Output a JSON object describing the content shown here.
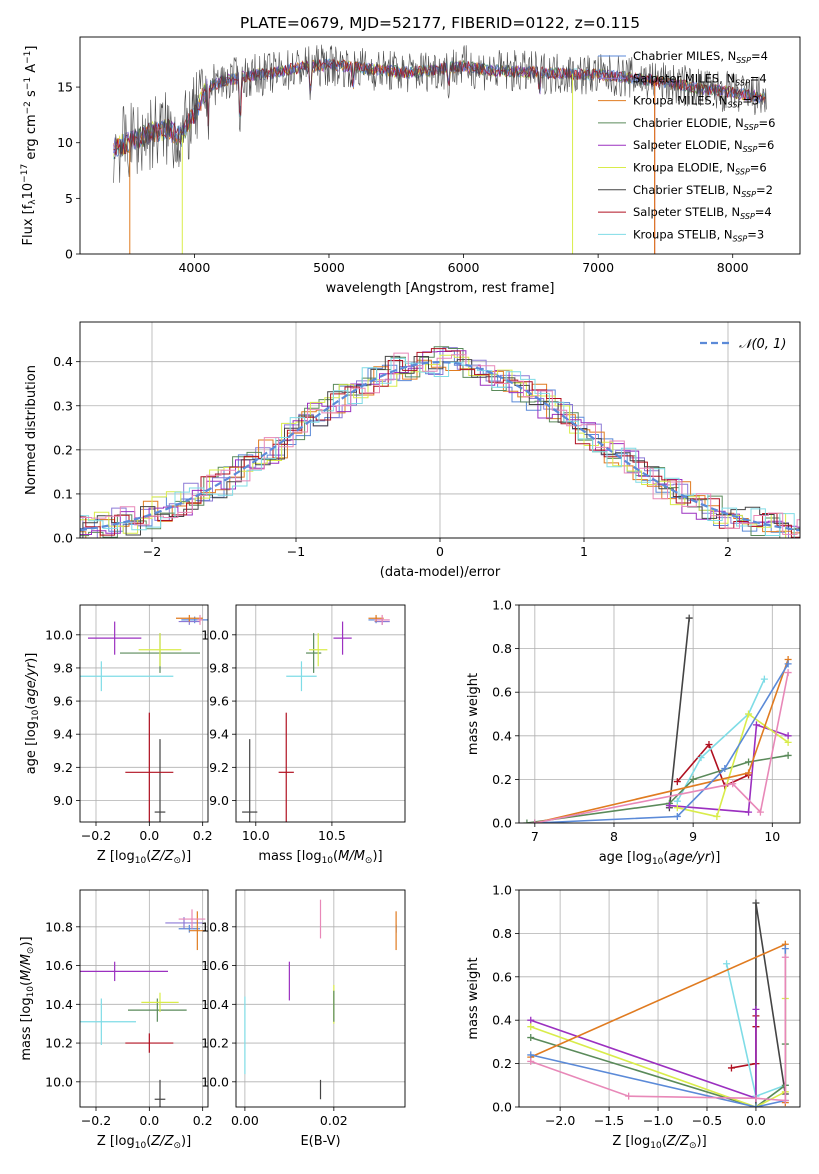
{
  "figure_title": "PLATE=0679, MJD=52177, FIBERID=0122, z=0.115",
  "colors": {
    "chabrier_miles": "#5b8ad8",
    "salpeter_miles": "#8c7ad6",
    "kroupa_miles": "#e07b20",
    "chabrier_elodie": "#5a8a5a",
    "salpeter_elodie": "#9b30c0",
    "kroupa_elodie": "#d9ec4a",
    "chabrier_stelib": "#444444",
    "salpeter_stelib": "#b01020",
    "kroupa_stelib": "#7fdce6",
    "pink": "#e888b8",
    "normal": "#5b8ad8"
  },
  "chart_data": [
    {
      "type": "line",
      "id": "spectrum",
      "xlabel": "wavelength [Angstrom, rest frame]",
      "ylabel": "Flux [f_λ10^-17 erg cm^-2 s^-1 A^-1]",
      "xlim": [
        3150,
        8500
      ],
      "ylim": [
        0,
        19.5
      ],
      "xticks": [
        4000,
        5000,
        6000,
        7000,
        8000
      ],
      "yticks": [
        0,
        5,
        10,
        15
      ],
      "grid": false,
      "legend_position": "upper right",
      "legend": [
        {
          "base": "Chabrier MILES, N",
          "sub": "SSP",
          "tail": "=4",
          "key": "chabrier_miles"
        },
        {
          "base": "Salpeter MILES, N",
          "sub": "SSP",
          "tail": "=4",
          "key": "salpeter_miles"
        },
        {
          "base": "Kroupa MILES, N",
          "sub": "SSP",
          "tail": "=3",
          "key": "kroupa_miles"
        },
        {
          "base": "Chabrier ELODIE, N",
          "sub": "SSP",
          "tail": "=6",
          "key": "chabrier_elodie"
        },
        {
          "base": "Salpeter ELODIE, N",
          "sub": "SSP",
          "tail": "=6",
          "key": "salpeter_elodie"
        },
        {
          "base": "Kroupa ELODIE, N",
          "sub": "SSP",
          "tail": "=6",
          "key": "kroupa_elodie"
        },
        {
          "base": "Chabrier STELIB, N",
          "sub": "SSP",
          "tail": "=2",
          "key": "chabrier_stelib"
        },
        {
          "base": "Salpeter STELIB, N",
          "sub": "SSP",
          "tail": "=4",
          "key": "salpeter_stelib"
        },
        {
          "base": "Kroupa STELIB, N",
          "sub": "SSP",
          "tail": "=3",
          "key": "kroupa_stelib"
        }
      ],
      "continuum": [
        [
          3400,
          9.5
        ],
        [
          3500,
          10
        ],
        [
          3600,
          10.5
        ],
        [
          3700,
          11
        ],
        [
          3800,
          11.2
        ],
        [
          3900,
          10.5
        ],
        [
          4000,
          12.5
        ],
        [
          4100,
          15
        ],
        [
          4200,
          15.5
        ],
        [
          4400,
          16
        ],
        [
          4600,
          16.3
        ],
        [
          4800,
          16.8
        ],
        [
          5000,
          17
        ],
        [
          5200,
          16.8
        ],
        [
          5400,
          16.5
        ],
        [
          5600,
          16.3
        ],
        [
          5800,
          16.6
        ],
        [
          6000,
          16.9
        ],
        [
          6200,
          16.5
        ],
        [
          6400,
          16.4
        ],
        [
          6600,
          16.3
        ],
        [
          6800,
          16.2
        ],
        [
          7000,
          16.1
        ],
        [
          7200,
          15.9
        ],
        [
          7400,
          15.6
        ],
        [
          7600,
          15.2
        ],
        [
          7800,
          14.8
        ],
        [
          8000,
          14.5
        ],
        [
          8250,
          14.0
        ]
      ]
    },
    {
      "type": "bar",
      "id": "residual_histogram",
      "xlabel": "(data-model)/error",
      "ylabel": "Normed distribution",
      "xlim": [
        -2.5,
        2.5
      ],
      "ylim": [
        0,
        0.49
      ],
      "xticks": [
        -2,
        -1,
        0,
        1,
        2
      ],
      "yticks": [
        0.0,
        0.1,
        0.2,
        0.3,
        0.4
      ],
      "grid": true,
      "legend_position": "upper right",
      "legend_label": "𝒩(0, 1)",
      "normal_curve": {
        "mu": 0,
        "sigma": 1
      }
    },
    {
      "type": "scatter",
      "id": "age_vs_z",
      "xlabel": "Z [log10(Z/Z⊙)]",
      "ylabel": "age [log10(age/yr)]",
      "xlim": [
        -0.26,
        0.22
      ],
      "ylim": [
        8.87,
        10.18
      ],
      "xticks": [
        -0.2,
        0.0,
        0.2
      ],
      "yticks": [
        9.0,
        9.2,
        9.4,
        9.6,
        9.8,
        10.0
      ],
      "grid": true,
      "points": [
        {
          "key": "chabrier_miles",
          "x": 0.17,
          "y": 10.09,
          "xerr": 0.05,
          "yerr": 0.02
        },
        {
          "key": "salpeter_miles",
          "x": 0.15,
          "y": 10.08,
          "xerr": 0.04,
          "yerr": 0.02
        },
        {
          "key": "kroupa_miles",
          "x": 0.15,
          "y": 10.1,
          "xerr": 0.05,
          "yerr": 0.02
        },
        {
          "key": "chabrier_elodie",
          "x": 0.04,
          "y": 9.89,
          "xerr": 0.15,
          "yerr": 0.12
        },
        {
          "key": "salpeter_elodie",
          "x": -0.13,
          "y": 9.98,
          "xerr": 0.1,
          "yerr": 0.1
        },
        {
          "key": "kroupa_elodie",
          "x": 0.04,
          "y": 9.91,
          "xerr": 0.08,
          "yerr": 0.1
        },
        {
          "key": "chabrier_stelib",
          "x": 0.04,
          "y": 8.93,
          "xerr": 0.02,
          "yerr": 0.44
        },
        {
          "key": "salpeter_stelib",
          "x": 0.0,
          "y": 9.17,
          "xerr": 0.09,
          "yerr": 0.36
        },
        {
          "key": "kroupa_stelib",
          "x": -0.18,
          "y": 9.75,
          "xerr": 0.27,
          "yerr": 0.09
        },
        {
          "key": "pink",
          "x": 0.19,
          "y": 10.09,
          "xerr": 0.01,
          "yerr": 0.03
        }
      ]
    },
    {
      "type": "scatter",
      "id": "age_vs_mass",
      "xlabel": "mass [log10(M/M⊙)]",
      "ylabel": "",
      "xlim": [
        9.87,
        10.98
      ],
      "ylim": [
        8.87,
        10.18
      ],
      "xticks": [
        10.0,
        10.5
      ],
      "yticks": [
        9.0,
        9.2,
        9.4,
        9.6,
        9.8,
        10.0
      ],
      "grid": true,
      "points": [
        {
          "key": "chabrier_miles",
          "x": 10.79,
          "y": 10.09,
          "xerr": 0.05,
          "yerr": 0.02
        },
        {
          "key": "salpeter_miles",
          "x": 10.83,
          "y": 10.08,
          "xerr": 0.05,
          "yerr": 0.02
        },
        {
          "key": "kroupa_miles",
          "x": 10.79,
          "y": 10.1,
          "xerr": 0.05,
          "yerr": 0.02
        },
        {
          "key": "chabrier_elodie",
          "x": 10.38,
          "y": 9.89,
          "xerr": 0.05,
          "yerr": 0.12
        },
        {
          "key": "salpeter_elodie",
          "x": 10.57,
          "y": 9.98,
          "xerr": 0.06,
          "yerr": 0.1
        },
        {
          "key": "kroupa_elodie",
          "x": 10.41,
          "y": 9.91,
          "xerr": 0.06,
          "yerr": 0.1
        },
        {
          "key": "chabrier_stelib",
          "x": 9.96,
          "y": 8.93,
          "xerr": 0.05,
          "yerr": 0.44
        },
        {
          "key": "salpeter_stelib",
          "x": 10.2,
          "y": 9.17,
          "xerr": 0.05,
          "yerr": 0.36
        },
        {
          "key": "kroupa_stelib",
          "x": 10.3,
          "y": 9.75,
          "xerr": 0.1,
          "yerr": 0.09
        },
        {
          "key": "pink",
          "x": 10.83,
          "y": 10.09,
          "xerr": 0.05,
          "yerr": 0.03
        }
      ]
    },
    {
      "type": "line",
      "id": "mass_weight_vs_age",
      "xlabel": "age [log10(age/yr)]",
      "ylabel": "mass weight",
      "xlim": [
        6.8,
        10.35
      ],
      "ylim": [
        0,
        1.0
      ],
      "xticks": [
        7,
        8,
        9,
        10
      ],
      "yticks": [
        0.0,
        0.2,
        0.4,
        0.6,
        0.8,
        1.0
      ],
      "grid": true,
      "series": [
        {
          "key": "chabrier_stelib",
          "x": [
            8.7,
            8.95
          ],
          "y": [
            0.07,
            0.94
          ]
        },
        {
          "key": "salpeter_stelib",
          "x": [
            8.8,
            9.2,
            9.4,
            9.7
          ],
          "y": [
            0.19,
            0.36,
            0.17,
            0.22
          ]
        },
        {
          "key": "kroupa_stelib",
          "x": [
            8.8,
            9.1,
            9.7,
            9.9
          ],
          "y": [
            0.1,
            0.3,
            0.5,
            0.66
          ]
        },
        {
          "key": "chabrier_elodie",
          "x": [
            6.9,
            8.7,
            9.0,
            9.7,
            10.2
          ],
          "y": [
            0.0,
            0.09,
            0.2,
            0.28,
            0.31
          ]
        },
        {
          "key": "salpeter_elodie",
          "x": [
            8.7,
            9.7,
            9.8,
            10.2
          ],
          "y": [
            0.08,
            0.05,
            0.45,
            0.4
          ]
        },
        {
          "key": "kroupa_elodie",
          "x": [
            8.8,
            9.3,
            9.7,
            10.2
          ],
          "y": [
            0.07,
            0.03,
            0.5,
            0.37
          ]
        },
        {
          "key": "kroupa_miles",
          "x": [
            7.0,
            9.7,
            10.2
          ],
          "y": [
            0.0,
            0.23,
            0.75
          ]
        },
        {
          "key": "chabrier_miles",
          "x": [
            7.0,
            8.8,
            9.4,
            10.2
          ],
          "y": [
            0.0,
            0.03,
            0.25,
            0.73
          ]
        },
        {
          "key": "pink",
          "x": [
            7.0,
            9.5,
            9.85,
            10.2
          ],
          "y": [
            0.0,
            0.18,
            0.05,
            0.69
          ]
        }
      ]
    },
    {
      "type": "scatter",
      "id": "mass_vs_z",
      "xlabel": "Z [log10(Z/Z⊙)]",
      "ylabel": "mass [log10(M/M⊙)]",
      "xlim": [
        -0.26,
        0.22
      ],
      "ylim": [
        9.87,
        10.99
      ],
      "xticks": [
        -0.2,
        0.0,
        0.2
      ],
      "yticks": [
        10.0,
        10.2,
        10.4,
        10.6,
        10.8
      ],
      "grid": true,
      "points": [
        {
          "key": "chabrier_miles",
          "x": 0.15,
          "y": 10.79,
          "xerr": 0.04,
          "yerr": 0.02
        },
        {
          "key": "salpeter_miles",
          "x": 0.13,
          "y": 10.82,
          "xerr": 0.07,
          "yerr": 0.03
        },
        {
          "key": "kroupa_miles",
          "x": 0.18,
          "y": 10.78,
          "xerr": 0.03,
          "yerr": 0.1
        },
        {
          "key": "chabrier_elodie",
          "x": 0.03,
          "y": 10.37,
          "xerr": 0.11,
          "yerr": 0.06
        },
        {
          "key": "salpeter_elodie",
          "x": -0.13,
          "y": 10.57,
          "xerr": 0.2,
          "yerr": 0.05
        },
        {
          "key": "kroupa_elodie",
          "x": 0.04,
          "y": 10.41,
          "xerr": 0.07,
          "yerr": 0.05
        },
        {
          "key": "chabrier_stelib",
          "x": 0.04,
          "y": 9.91,
          "xerr": 0.02,
          "yerr": 0.1
        },
        {
          "key": "salpeter_stelib",
          "x": 0.0,
          "y": 10.2,
          "xerr": 0.09,
          "yerr": 0.05
        },
        {
          "key": "kroupa_stelib",
          "x": -0.18,
          "y": 10.31,
          "xerr": 0.13,
          "yerr": 0.12
        },
        {
          "key": "pink",
          "x": 0.16,
          "y": 10.84,
          "xerr": 0.05,
          "yerr": 0.05
        }
      ]
    },
    {
      "type": "scatter",
      "id": "mass_vs_ebv",
      "xlabel": "E(B-V)",
      "ylabel": "",
      "xlim": [
        -0.002,
        0.036
      ],
      "ylim": [
        9.87,
        10.99
      ],
      "xticks": [
        0.0,
        0.02
      ],
      "yticks": [
        10.0,
        10.2,
        10.4,
        10.6,
        10.8
      ],
      "grid": true,
      "points": [
        {
          "key": "chabrier_miles",
          "x": 0.034,
          "y": 10.79,
          "xerr": 0,
          "yerr": 0.02
        },
        {
          "key": "kroupa_miles",
          "x": 0.034,
          "y": 10.78,
          "xerr": 0,
          "yerr": 0.1
        },
        {
          "key": "salpeter_elodie",
          "x": 0.01,
          "y": 10.52,
          "xerr": 0,
          "yerr": 0.1
        },
        {
          "key": "kroupa_elodie",
          "x": 0.02,
          "y": 10.4,
          "xerr": 0,
          "yerr": 0.1
        },
        {
          "key": "chabrier_elodie",
          "x": 0.02,
          "y": 10.39,
          "xerr": 0,
          "yerr": 0.08
        },
        {
          "key": "chabrier_stelib",
          "x": 0.017,
          "y": 9.96,
          "xerr": 0,
          "yerr": 0.05
        },
        {
          "key": "kroupa_stelib",
          "x": 0.0,
          "y": 10.24,
          "xerr": 0,
          "yerr": 0.2
        },
        {
          "key": "pink",
          "x": 0.017,
          "y": 10.84,
          "xerr": 0,
          "yerr": 0.1
        }
      ]
    },
    {
      "type": "line",
      "id": "mass_weight_vs_z",
      "xlabel": "Z [log10(Z/Z⊙)]",
      "ylabel": "mass weight",
      "xlim": [
        -2.42,
        0.45
      ],
      "ylim": [
        0,
        1.0
      ],
      "xticks": [
        -2.0,
        -1.5,
        -1.0,
        -0.5,
        0.0
      ],
      "yticks": [
        0.0,
        0.2,
        0.4,
        0.6,
        0.8,
        1.0
      ],
      "grid": true,
      "series": [
        {
          "key": "chabrier_stelib",
          "x": [
            0.0,
            0.0,
            0.3
          ],
          "y": [
            0.0,
            0.94,
            0.06
          ]
        },
        {
          "key": "salpeter_stelib",
          "x": [
            -0.25,
            0.0,
            0.0,
            0.0
          ],
          "y": [
            0.18,
            0.2,
            0.37,
            0.42
          ]
        },
        {
          "key": "kroupa_stelib",
          "x": [
            -0.3,
            0.0,
            0.3
          ],
          "y": [
            0.66,
            0.05,
            0.1
          ]
        },
        {
          "key": "chabrier_elodie",
          "x": [
            -2.3,
            0.0,
            0.3,
            0.3
          ],
          "y": [
            0.32,
            0.0,
            0.1,
            0.29
          ]
        },
        {
          "key": "salpeter_elodie",
          "x": [
            -2.3,
            0.0,
            0.0
          ],
          "y": [
            0.4,
            0.04,
            0.45
          ]
        },
        {
          "key": "kroupa_elodie",
          "x": [
            -2.3,
            0.0,
            0.3,
            0.3
          ],
          "y": [
            0.37,
            0.0,
            0.07,
            0.5
          ]
        },
        {
          "key": "kroupa_miles",
          "x": [
            -2.3,
            0.3,
            0.3
          ],
          "y": [
            0.23,
            0.75,
            0.02
          ]
        },
        {
          "key": "chabrier_miles",
          "x": [
            -2.3,
            0.0,
            0.3,
            0.3
          ],
          "y": [
            0.24,
            0.0,
            0.03,
            0.73
          ]
        },
        {
          "key": "pink",
          "x": [
            -2.3,
            -1.3,
            0.0,
            0.3,
            0.3
          ],
          "y": [
            0.21,
            0.05,
            0.04,
            0.03,
            0.69
          ]
        }
      ]
    }
  ]
}
